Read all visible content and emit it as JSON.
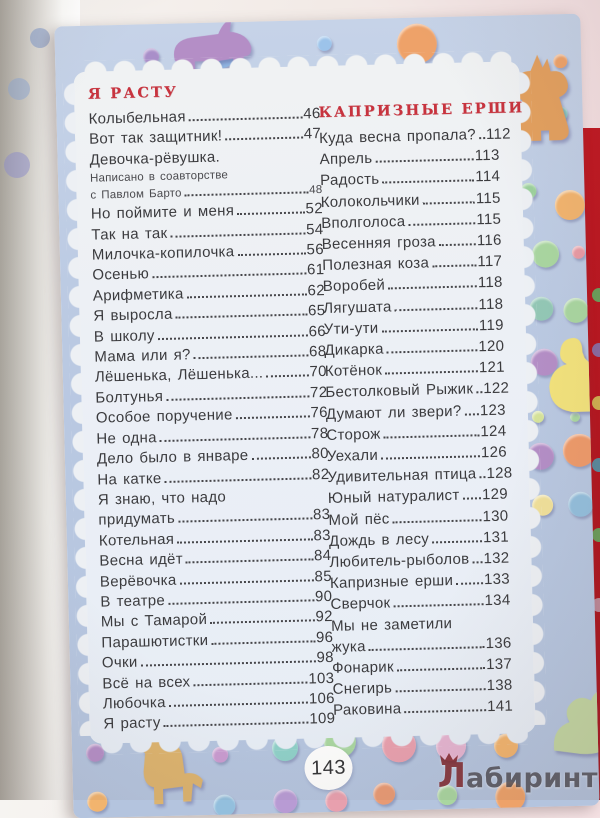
{
  "book_page": {
    "page_number": "143",
    "watermark": {
      "mark": "Л",
      "text": "абиринт"
    },
    "colors": {
      "heading_red": "#c8333e",
      "border_blue": "#bccbe4",
      "panel_white": "#edf1f7",
      "cover_red": "#b3141c",
      "text": "#3b3b3e"
    },
    "columns": [
      {
        "heading": "Я РАСТУ",
        "entries": [
          {
            "t": "Колыбельная",
            "p": "46"
          },
          {
            "t": "Вот так защитник!",
            "p": "47"
          },
          {
            "t": "Девочка-рёвушка.",
            "p": "",
            "s": "plain"
          },
          {
            "t": "Написано в соавторстве",
            "p": "",
            "s": "note-plain"
          },
          {
            "t": "с Павлом Барто",
            "p": "48",
            "s": "note"
          },
          {
            "t": "Но поймите и меня",
            "p": "52"
          },
          {
            "t": "Так на так",
            "p": "54"
          },
          {
            "t": "Милочка-копилочка",
            "p": "56"
          },
          {
            "t": "Осенью",
            "p": "61"
          },
          {
            "t": "Арифметика",
            "p": "62"
          },
          {
            "t": "Я выросла",
            "p": "65"
          },
          {
            "t": "В школу",
            "p": "66"
          },
          {
            "t": "Мама или я?",
            "p": "68"
          },
          {
            "t": "Лёшенька, Лёшенька...",
            "p": "70"
          },
          {
            "t": "Болтунья",
            "p": "72"
          },
          {
            "t": "Особое поручение",
            "p": "76"
          },
          {
            "t": "Не одна",
            "p": "78"
          },
          {
            "t": "Дело было в январе",
            "p": "80"
          },
          {
            "t": "На катке",
            "p": "82"
          },
          {
            "t": "Я знаю, что надо",
            "p": "",
            "s": "plain"
          },
          {
            "t": "придумать",
            "p": "83"
          },
          {
            "t": "Котельная",
            "p": "83"
          },
          {
            "t": "Весна идёт",
            "p": "84"
          },
          {
            "t": "Верёвочка",
            "p": "85"
          },
          {
            "t": "В театре",
            "p": "90"
          },
          {
            "t": "Мы с Тамарой",
            "p": "92"
          },
          {
            "t": "Парашютистки",
            "p": "96"
          },
          {
            "t": "Очки",
            "p": "98"
          },
          {
            "t": "Всё на всех",
            "p": "103"
          },
          {
            "t": "Любочка",
            "p": "106"
          },
          {
            "t": "Я расту",
            "p": "109"
          }
        ]
      },
      {
        "heading": "КАПРИЗНЫЕ ЕРШИ",
        "entries": [
          {
            "t": "Куда весна пропала?",
            "p": "112"
          },
          {
            "t": "Апрель",
            "p": "113"
          },
          {
            "t": "Радость",
            "p": "114"
          },
          {
            "t": "Колокольчики",
            "p": "115"
          },
          {
            "t": "Вполголоса",
            "p": "115"
          },
          {
            "t": "Весенняя гроза",
            "p": "116"
          },
          {
            "t": "Полезная коза",
            "p": "117"
          },
          {
            "t": "Воробей",
            "p": "118"
          },
          {
            "t": "Лягушата",
            "p": "118"
          },
          {
            "t": "Ути-ути",
            "p": "119"
          },
          {
            "t": "Дикарка",
            "p": "120"
          },
          {
            "t": "Котёнок",
            "p": "121"
          },
          {
            "t": "Бестолковый Рыжик",
            "p": "122"
          },
          {
            "t": "Думают ли звери?",
            "p": "123"
          },
          {
            "t": "Сторож",
            "p": "124"
          },
          {
            "t": "Уехали",
            "p": "126"
          },
          {
            "t": "Удивительная птица",
            "p": "128"
          },
          {
            "t": "Юный натуралист",
            "p": "129"
          },
          {
            "t": "Мой пёс",
            "p": "130"
          },
          {
            "t": "Дождь в лесу",
            "p": "131"
          },
          {
            "t": "Любитель-рыболов",
            "p": "132"
          },
          {
            "t": "Капризные ерши",
            "p": "133"
          },
          {
            "t": "Сверчок",
            "p": "134"
          },
          {
            "t": "Мы не заметили",
            "p": "",
            "s": "plain"
          },
          {
            "t": "жука",
            "p": "136"
          },
          {
            "t": "Фонарик",
            "p": "137"
          },
          {
            "t": "Снегирь",
            "p": "138"
          },
          {
            "t": "Раковина",
            "p": "141"
          }
        ]
      }
    ],
    "decor_icons": [
      "rhino-icon",
      "bear-icon",
      "duck-icon",
      "horse-icon",
      "squirrel-icon"
    ]
  }
}
